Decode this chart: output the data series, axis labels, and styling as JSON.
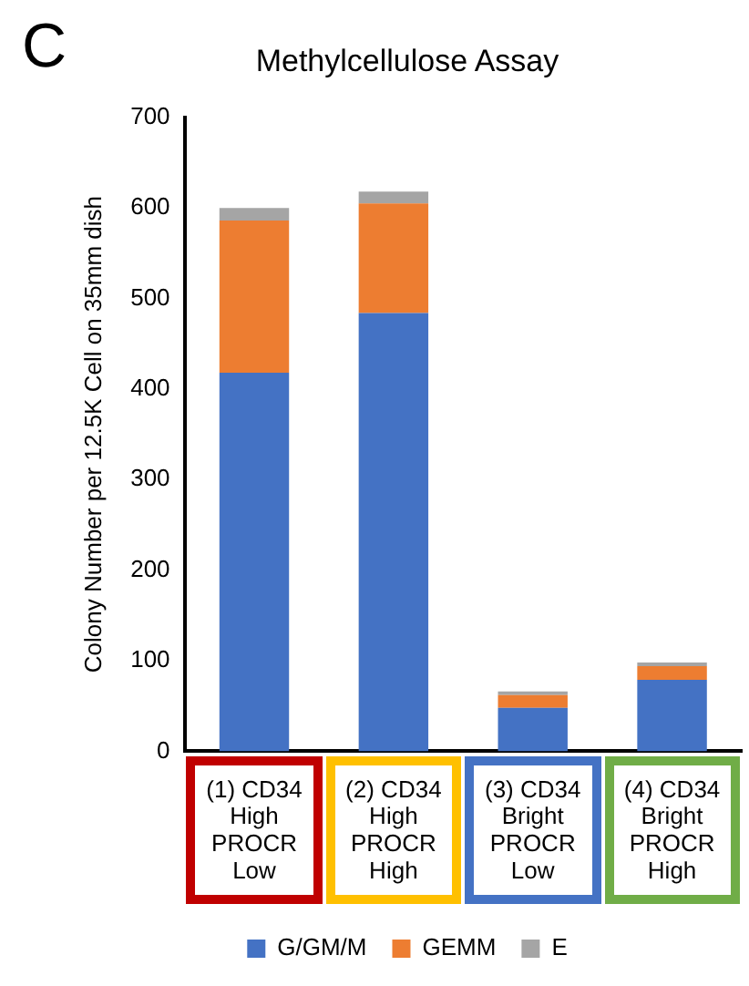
{
  "chart_data": {
    "type": "bar",
    "title": "Methylcellulose Assay",
    "ylabel": "Colony Number per 12.5K Cell on 35mm dish",
    "annotations": [
      "C"
    ],
    "categories": [
      "(1) CD34 High PROCR Low",
      "(2) CD34 High PROCR High",
      "(3) CD34 Bright PROCR Low",
      "(4) CD34 Bright PROCR High"
    ],
    "stacked": true,
    "series": [
      {
        "name": "G/GM/M",
        "color": "#4472c4",
        "values": [
          418,
          484,
          48,
          79
        ]
      },
      {
        "name": "GEMM",
        "color": "#ed7d31",
        "values": [
          168,
          121,
          14,
          15
        ]
      },
      {
        "name": "E",
        "color": "#a5a5a5",
        "values": [
          14,
          13,
          4,
          4
        ]
      }
    ],
    "ylim": [
      0,
      700
    ],
    "yticks": [
      0,
      100,
      200,
      300,
      400,
      500,
      600,
      700
    ],
    "grid": false,
    "legend": "bottom"
  }
}
